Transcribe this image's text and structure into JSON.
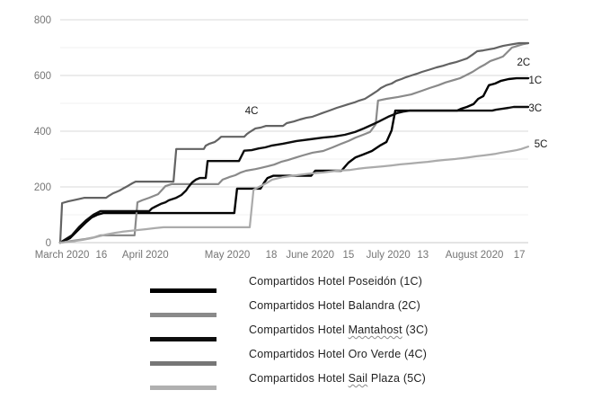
{
  "chart_data": {
    "type": "line",
    "title": "",
    "xlabel": "",
    "ylabel": "",
    "grid": true,
    "legend_position": "bottom",
    "y_axis": {
      "min": 0,
      "max": 800,
      "major_ticks": [
        0,
        200,
        400,
        600,
        800
      ],
      "minor_gridlines": [
        100,
        300,
        500,
        700
      ]
    },
    "x_axis": {
      "ticks": [
        {
          "label": "March 2020",
          "f": 0.004
        },
        {
          "label": "16",
          "f": 0.088
        },
        {
          "label": "April 2020",
          "f": 0.182
        },
        {
          "label": "May 2020",
          "f": 0.357
        },
        {
          "label": "18",
          "f": 0.451
        },
        {
          "label": "June 2020",
          "f": 0.534
        },
        {
          "label": "15",
          "f": 0.616
        },
        {
          "label": "July 2020",
          "f": 0.701
        },
        {
          "label": "13",
          "f": 0.775
        },
        {
          "label": "August 2020",
          "f": 0.885
        },
        {
          "label": "17",
          "f": 0.981
        }
      ]
    },
    "colors": {
      "grid_major": "#d9d9d9",
      "grid_minor": "#f1f1f1",
      "axis_line": "#c8c8c8",
      "tick_text": "#757575",
      "annotation_text": "#1a1a1a"
    },
    "series": [
      {
        "id": "1C",
        "name": "Compartidos Hotel Poseidón (1C)",
        "color": "#000000",
        "stroke_width": 2.4,
        "end_label": "1C",
        "label_f": 1.015,
        "label_v": 584,
        "points": [
          [
            0,
            0
          ],
          [
            0.021,
            16
          ],
          [
            0.04,
            48
          ],
          [
            0.054,
            71
          ],
          [
            0.067,
            90
          ],
          [
            0.079,
            100
          ],
          [
            0.092,
            106
          ],
          [
            0.372,
            106
          ],
          [
            0.378,
            194
          ],
          [
            0.428,
            194
          ],
          [
            0.436,
            216
          ],
          [
            0.443,
            232
          ],
          [
            0.455,
            240
          ],
          [
            0.536,
            240
          ],
          [
            0.545,
            258
          ],
          [
            0.601,
            258
          ],
          [
            0.616,
            287
          ],
          [
            0.631,
            306
          ],
          [
            0.647,
            316
          ],
          [
            0.666,
            329
          ],
          [
            0.683,
            348
          ],
          [
            0.697,
            361
          ],
          [
            0.708,
            403
          ],
          [
            0.716,
            474
          ],
          [
            0.848,
            474
          ],
          [
            0.856,
            480
          ],
          [
            0.869,
            487
          ],
          [
            0.883,
            497
          ],
          [
            0.893,
            516
          ],
          [
            0.904,
            526
          ],
          [
            0.916,
            565
          ],
          [
            0.929,
            571
          ],
          [
            0.942,
            581
          ],
          [
            0.958,
            587
          ],
          [
            0.975,
            590
          ],
          [
            1,
            590
          ]
        ]
      },
      {
        "id": "2C",
        "name": "Compartidos Hotel Balandra (2C)",
        "color": "#8a8a8a",
        "stroke_width": 2.2,
        "end_label": "2C",
        "label_f": 0.99,
        "label_v": 648,
        "points": [
          [
            0,
            0
          ],
          [
            0.025,
            6
          ],
          [
            0.054,
            13
          ],
          [
            0.073,
            19
          ],
          [
            0.086,
            26
          ],
          [
            0.159,
            26
          ],
          [
            0.165,
            145
          ],
          [
            0.175,
            152
          ],
          [
            0.19,
            161
          ],
          [
            0.209,
            174
          ],
          [
            0.225,
            203
          ],
          [
            0.238,
            210
          ],
          [
            0.338,
            210
          ],
          [
            0.347,
            226
          ],
          [
            0.361,
            235
          ],
          [
            0.374,
            242
          ],
          [
            0.386,
            252
          ],
          [
            0.397,
            258
          ],
          [
            0.417,
            264
          ],
          [
            0.428,
            268
          ],
          [
            0.443,
            274
          ],
          [
            0.457,
            280
          ],
          [
            0.472,
            290
          ],
          [
            0.486,
            296
          ],
          [
            0.505,
            306
          ],
          [
            0.518,
            313
          ],
          [
            0.539,
            323
          ],
          [
            0.562,
            329
          ],
          [
            0.582,
            342
          ],
          [
            0.601,
            355
          ],
          [
            0.616,
            365
          ],
          [
            0.631,
            377
          ],
          [
            0.647,
            387
          ],
          [
            0.662,
            397
          ],
          [
            0.674,
            425
          ],
          [
            0.679,
            510
          ],
          [
            0.697,
            516
          ],
          [
            0.722,
            523
          ],
          [
            0.75,
            532
          ],
          [
            0.773,
            545
          ],
          [
            0.789,
            555
          ],
          [
            0.808,
            565
          ],
          [
            0.823,
            575
          ],
          [
            0.854,
            590
          ],
          [
            0.866,
            600
          ],
          [
            0.881,
            613
          ],
          [
            0.896,
            629
          ],
          [
            0.908,
            640
          ],
          [
            0.919,
            652
          ],
          [
            0.935,
            661
          ],
          [
            0.946,
            668
          ],
          [
            0.965,
            700
          ],
          [
            0.977,
            706
          ],
          [
            0.988,
            712
          ],
          [
            1,
            716
          ]
        ]
      },
      {
        "id": "3C",
        "name": "Compartidos Hotel Mantahost (3C)",
        "color": "#0d0d0d",
        "stroke_width": 2.4,
        "end_label": "3C",
        "label_f": 1.015,
        "label_v": 484,
        "points": [
          [
            0,
            0
          ],
          [
            0.025,
            26
          ],
          [
            0.04,
            55
          ],
          [
            0.056,
            81
          ],
          [
            0.071,
            100
          ],
          [
            0.086,
            113
          ],
          [
            0.19,
            113
          ],
          [
            0.196,
            123
          ],
          [
            0.203,
            129
          ],
          [
            0.215,
            139
          ],
          [
            0.225,
            145
          ],
          [
            0.232,
            152
          ],
          [
            0.248,
            161
          ],
          [
            0.259,
            171
          ],
          [
            0.269,
            187
          ],
          [
            0.274,
            200
          ],
          [
            0.282,
            216
          ],
          [
            0.29,
            226
          ],
          [
            0.298,
            232
          ],
          [
            0.311,
            232
          ],
          [
            0.315,
            293
          ],
          [
            0.382,
            293
          ],
          [
            0.393,
            330
          ],
          [
            0.409,
            332
          ],
          [
            0.424,
            338
          ],
          [
            0.438,
            342
          ],
          [
            0.451,
            348
          ],
          [
            0.476,
            355
          ],
          [
            0.505,
            365
          ],
          [
            0.534,
            371
          ],
          [
            0.562,
            377
          ],
          [
            0.585,
            381
          ],
          [
            0.608,
            387
          ],
          [
            0.63,
            397
          ],
          [
            0.649,
            410
          ],
          [
            0.666,
            423
          ],
          [
            0.681,
            435
          ],
          [
            0.701,
            452
          ],
          [
            0.72,
            465
          ],
          [
            0.735,
            471
          ],
          [
            0.747,
            474
          ],
          [
            0.923,
            474
          ],
          [
            0.931,
            477
          ],
          [
            0.946,
            481
          ],
          [
            0.958,
            484
          ],
          [
            0.969,
            487
          ],
          [
            1,
            487
          ]
        ]
      },
      {
        "id": "4C",
        "name": "Compartidos Hotel Oro Verde (4C)",
        "color": "#636363",
        "stroke_width": 2.2,
        "end_label": "4C",
        "label_f": 0.409,
        "label_v": 474,
        "points": [
          [
            0,
            0
          ],
          [
            0.004,
            142
          ],
          [
            0.017,
            148
          ],
          [
            0.036,
            155
          ],
          [
            0.052,
            161
          ],
          [
            0.098,
            161
          ],
          [
            0.104,
            168
          ],
          [
            0.113,
            177
          ],
          [
            0.127,
            187
          ],
          [
            0.134,
            194
          ],
          [
            0.144,
            203
          ],
          [
            0.154,
            213
          ],
          [
            0.161,
            219
          ],
          [
            0.242,
            219
          ],
          [
            0.248,
            336
          ],
          [
            0.307,
            336
          ],
          [
            0.311,
            348
          ],
          [
            0.319,
            355
          ],
          [
            0.33,
            361
          ],
          [
            0.338,
            371
          ],
          [
            0.344,
            380
          ],
          [
            0.393,
            380
          ],
          [
            0.399,
            390
          ],
          [
            0.405,
            397
          ],
          [
            0.417,
            410
          ],
          [
            0.428,
            413
          ],
          [
            0.44,
            419
          ],
          [
            0.476,
            419
          ],
          [
            0.484,
            429
          ],
          [
            0.499,
            435
          ],
          [
            0.512,
            442
          ],
          [
            0.526,
            448
          ],
          [
            0.539,
            452
          ],
          [
            0.549,
            458
          ],
          [
            0.56,
            465
          ],
          [
            0.57,
            471
          ],
          [
            0.58,
            477
          ],
          [
            0.591,
            484
          ],
          [
            0.603,
            490
          ],
          [
            0.616,
            497
          ],
          [
            0.628,
            503
          ],
          [
            0.639,
            510
          ],
          [
            0.651,
            516
          ],
          [
            0.666,
            532
          ],
          [
            0.678,
            545
          ],
          [
            0.685,
            555
          ],
          [
            0.697,
            565
          ],
          [
            0.708,
            571
          ],
          [
            0.718,
            581
          ],
          [
            0.729,
            587
          ],
          [
            0.739,
            594
          ],
          [
            0.75,
            600
          ],
          [
            0.762,
            606
          ],
          [
            0.773,
            613
          ],
          [
            0.789,
            621
          ],
          [
            0.804,
            629
          ],
          [
            0.818,
            635
          ],
          [
            0.831,
            642
          ],
          [
            0.846,
            648
          ],
          [
            0.858,
            655
          ],
          [
            0.869,
            661
          ],
          [
            0.881,
            675
          ],
          [
            0.891,
            687
          ],
          [
            0.904,
            690
          ],
          [
            0.916,
            694
          ],
          [
            0.927,
            697
          ],
          [
            0.939,
            703
          ],
          [
            0.946,
            706
          ],
          [
            0.958,
            710
          ],
          [
            0.969,
            713
          ],
          [
            0.981,
            716
          ],
          [
            1,
            716
          ]
        ]
      },
      {
        "id": "5C",
        "name": "Compartidos Hotel Sail Plaza (5C)",
        "color": "#ababab",
        "stroke_width": 2.2,
        "end_label": "5C",
        "label_f": 1.027,
        "label_v": 355,
        "points": [
          [
            0,
            0
          ],
          [
            0.017,
            3
          ],
          [
            0.033,
            6
          ],
          [
            0.048,
            10
          ],
          [
            0.067,
            16
          ],
          [
            0.083,
            23
          ],
          [
            0.098,
            29
          ],
          [
            0.117,
            35
          ],
          [
            0.132,
            39
          ],
          [
            0.148,
            42
          ],
          [
            0.163,
            45
          ],
          [
            0.182,
            48
          ],
          [
            0.202,
            52
          ],
          [
            0.221,
            55
          ],
          [
            0.405,
            55
          ],
          [
            0.413,
            190
          ],
          [
            0.428,
            203
          ],
          [
            0.44,
            213
          ],
          [
            0.453,
            226
          ],
          [
            0.476,
            235
          ],
          [
            0.505,
            242
          ],
          [
            0.534,
            248
          ],
          [
            0.562,
            252
          ],
          [
            0.591,
            258
          ],
          [
            0.62,
            261
          ],
          [
            0.635,
            265
          ],
          [
            0.651,
            268
          ],
          [
            0.67,
            271
          ],
          [
            0.689,
            274
          ],
          [
            0.708,
            277
          ],
          [
            0.727,
            281
          ],
          [
            0.747,
            284
          ],
          [
            0.766,
            287
          ],
          [
            0.785,
            290
          ],
          [
            0.804,
            294
          ],
          [
            0.823,
            297
          ],
          [
            0.843,
            300
          ],
          [
            0.858,
            303
          ],
          [
            0.873,
            306
          ],
          [
            0.889,
            310
          ],
          [
            0.904,
            313
          ],
          [
            0.919,
            316
          ],
          [
            0.931,
            319
          ],
          [
            0.942,
            323
          ],
          [
            0.954,
            326
          ],
          [
            0.965,
            329
          ],
          [
            0.975,
            332
          ],
          [
            0.985,
            336
          ],
          [
            0.992,
            340
          ],
          [
            1,
            345
          ]
        ]
      }
    ]
  },
  "legend": {
    "items": [
      {
        "id": "1C",
        "label": "Compartidos Hotel Poseidón (1C)",
        "wavy_word": "",
        "color": "#000000"
      },
      {
        "id": "2C",
        "label": "Compartidos Hotel Balandra (2C)",
        "wavy_word": "",
        "color": "#8a8a8a"
      },
      {
        "id": "3C",
        "label": "Compartidos Hotel Mantahost (3C)",
        "wavy_word": "Mantahost",
        "color": "#0d0d0d"
      },
      {
        "id": "4C",
        "label": "Compartidos Hotel Oro Verde (4C)",
        "wavy_word": "",
        "color": "#767676"
      },
      {
        "id": "5C",
        "label": "Compartidos Hotel Sail Plaza (5C)",
        "wavy_word": "Sail",
        "color": "#b0b0b0"
      }
    ]
  }
}
